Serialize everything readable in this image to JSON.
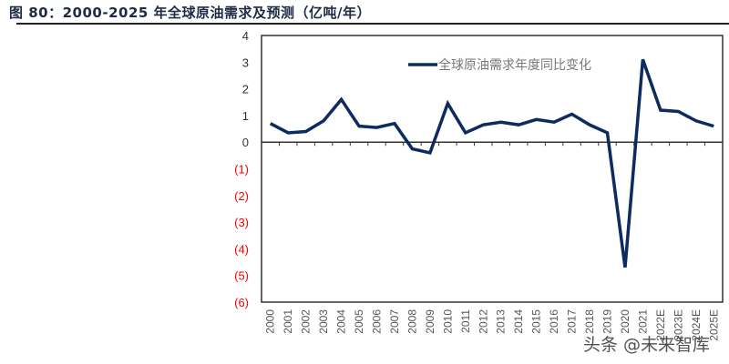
{
  "title": "图 80：2000-2025 年全球原油需求及预测（亿吨/年）",
  "watermark": "头条 @未来智库",
  "colors": {
    "line": "#0d2b5e",
    "negative_tick": "#ff0000",
    "positive_tick": "#333333"
  },
  "chart_data": {
    "type": "line",
    "title": "图 80：2000-2025 年全球原油需求及预测（亿吨/年）",
    "legend_placement": "top-center",
    "grid": false,
    "ylim": [
      -6,
      4
    ],
    "yticks": [
      4,
      3,
      2,
      1,
      0,
      -1,
      -2,
      -3,
      -4,
      -5,
      -6
    ],
    "ytick_labels": [
      "4",
      "3",
      "2",
      "1",
      "0",
      "(1)",
      "(2)",
      "(3)",
      "(4)",
      "(5)",
      "(6)"
    ],
    "categories": [
      "2000",
      "2001",
      "2002",
      "2003",
      "2004",
      "2005",
      "2006",
      "2007",
      "2008",
      "2009",
      "2010",
      "2011",
      "2012",
      "2013",
      "2014",
      "2015",
      "2016",
      "2017",
      "2018",
      "2019",
      "2020",
      "2021",
      "2022E",
      "2023E",
      "2024E",
      "2025E"
    ],
    "series": [
      {
        "name": "全球原油需求年度同比变化",
        "values": [
          0.7,
          0.35,
          0.4,
          0.8,
          1.6,
          0.6,
          0.55,
          0.7,
          -0.25,
          -0.4,
          1.45,
          0.35,
          0.65,
          0.75,
          0.65,
          0.85,
          0.75,
          1.05,
          0.65,
          0.35,
          -4.7,
          3.1,
          1.2,
          1.15,
          0.8,
          0.6
        ]
      }
    ]
  }
}
